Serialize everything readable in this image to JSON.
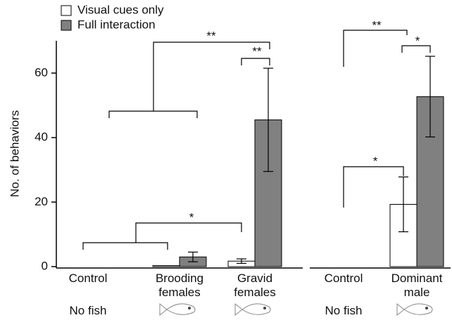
{
  "chart_data": [
    {
      "type": "bar",
      "y_label": "No. of behaviors",
      "categories": [
        "Control",
        "Brooding females",
        "Gravid females"
      ],
      "sublabels": [
        "No fish",
        null,
        null
      ],
      "series": [
        {
          "name": "Visual cues only",
          "color": "#ffffff",
          "values": [
            0,
            0.3,
            1.7
          ],
          "errors": [
            0,
            0,
            0.7
          ]
        },
        {
          "name": "Full interaction",
          "color": "#808080",
          "values": [
            0,
            3,
            45.5
          ],
          "errors": [
            0,
            1.5,
            16
          ]
        }
      ],
      "ylim": [
        0,
        70
      ],
      "yticks": [
        0,
        20,
        40,
        60
      ],
      "annotations": [
        "**",
        "**",
        "*"
      ]
    },
    {
      "type": "bar",
      "categories": [
        "Control",
        "Dominant male"
      ],
      "sublabels": [
        "No fish",
        null
      ],
      "series": [
        {
          "name": "Visual cues only",
          "color": "#ffffff",
          "values": [
            0,
            19.3
          ],
          "errors": [
            0,
            8.5
          ]
        },
        {
          "name": "Full interaction",
          "color": "#808080",
          "values": [
            0,
            52.7
          ],
          "errors": [
            0,
            12.5
          ]
        }
      ],
      "ylim": [
        0,
        70
      ],
      "annotations": [
        "**",
        "*",
        "*"
      ]
    }
  ]
}
